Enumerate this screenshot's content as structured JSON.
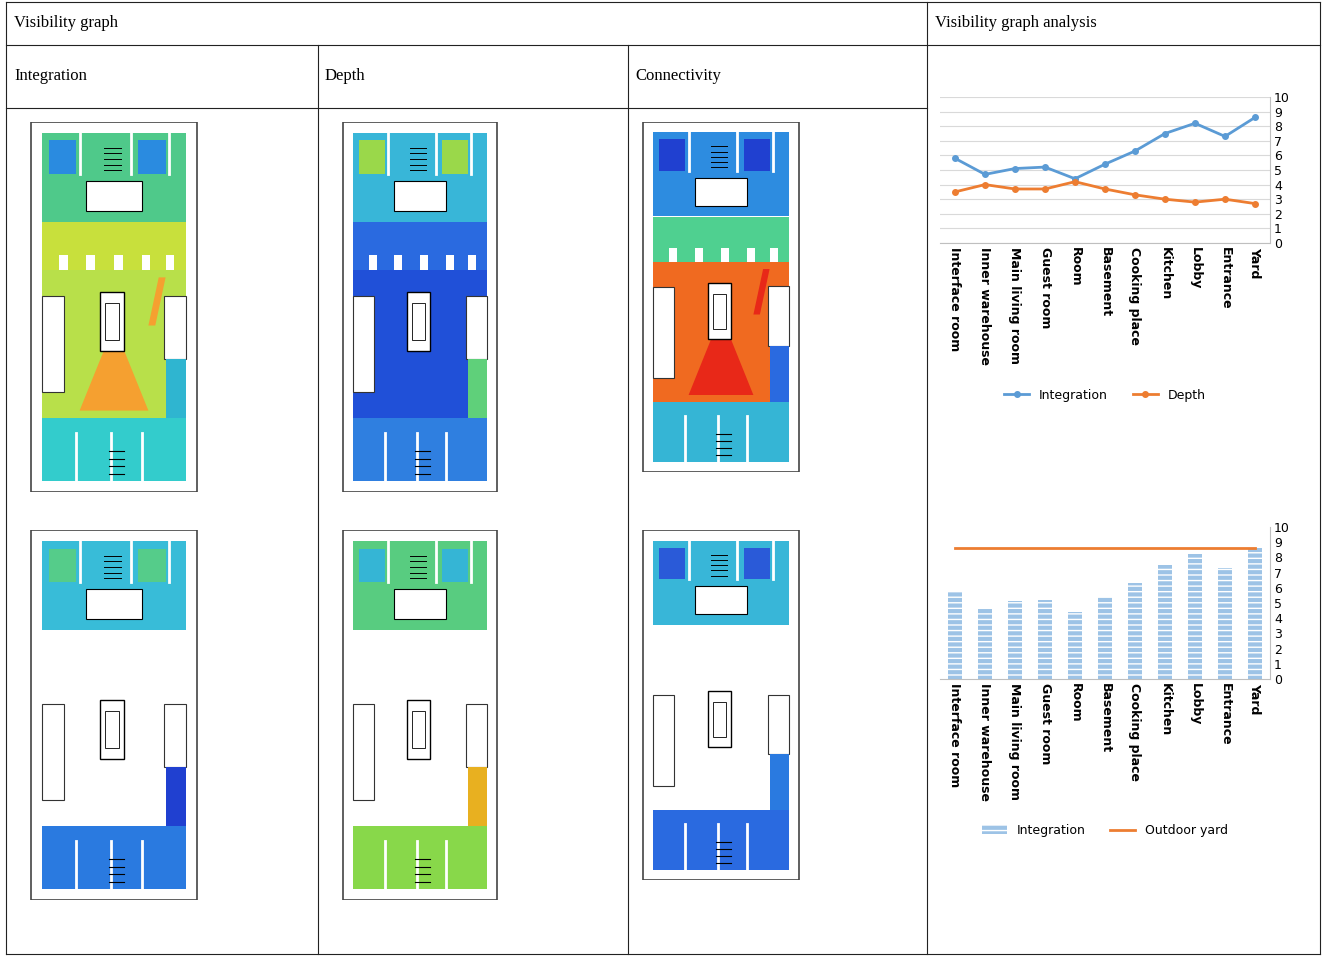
{
  "table": {
    "header": [
      "Visibility graph",
      "Visibility graph analysis"
    ],
    "subheader": [
      "Integration",
      "Depth",
      "Connectivity"
    ]
  },
  "chart_data": [
    {
      "type": "line",
      "categories": [
        "Interface room",
        "Inner warehouse",
        "Main living room",
        "Guest room",
        "Room",
        "Basement",
        "Cooking place",
        "Kitchen",
        "Lobby",
        "Entrance",
        "Yard"
      ],
      "series": [
        {
          "name": "Integration",
          "color": "#5b9bd5",
          "marker": "o",
          "line_style": "solid",
          "values": [
            5.8,
            4.7,
            5.1,
            5.2,
            4.4,
            5.4,
            6.3,
            7.5,
            8.2,
            7.3,
            8.6
          ]
        },
        {
          "name": "Depth",
          "color": "#ed7d31",
          "marker": "o",
          "line_style": "solid",
          "values": [
            3.5,
            4.0,
            3.7,
            3.7,
            4.2,
            3.7,
            3.3,
            3.0,
            2.8,
            3.0,
            2.7
          ]
        }
      ],
      "ylim": [
        0,
        10
      ],
      "yticks": [
        0,
        1,
        2,
        3,
        4,
        5,
        6,
        7,
        8,
        9,
        10
      ],
      "grid": true,
      "legend": "bottom"
    },
    {
      "type": "bar",
      "categories": [
        "Interface room",
        "Inner warehouse",
        "Main living room",
        "Guest room",
        "Room",
        "Basement",
        "Cooking place",
        "Kitchen",
        "Lobby",
        "Entrance",
        "Yard"
      ],
      "series": [
        {
          "name": "Integration",
          "type": "bar",
          "color": "#9dc3e6",
          "values": [
            5.8,
            4.7,
            5.1,
            5.2,
            4.4,
            5.4,
            6.3,
            7.5,
            8.2,
            7.3,
            8.6
          ]
        },
        {
          "name": "Outdoor yard",
          "type": "line",
          "color": "#ed7d31",
          "line_style": "solid",
          "values": [
            8.6,
            8.6,
            8.6,
            8.6,
            8.6,
            8.6,
            8.6,
            8.6,
            8.6,
            8.6,
            8.6
          ]
        }
      ],
      "ylim": [
        0,
        10
      ],
      "yticks": [
        0,
        1,
        2,
        3,
        4,
        5,
        6,
        7,
        8,
        9,
        10
      ],
      "grid": false,
      "legend": "bottom"
    }
  ]
}
